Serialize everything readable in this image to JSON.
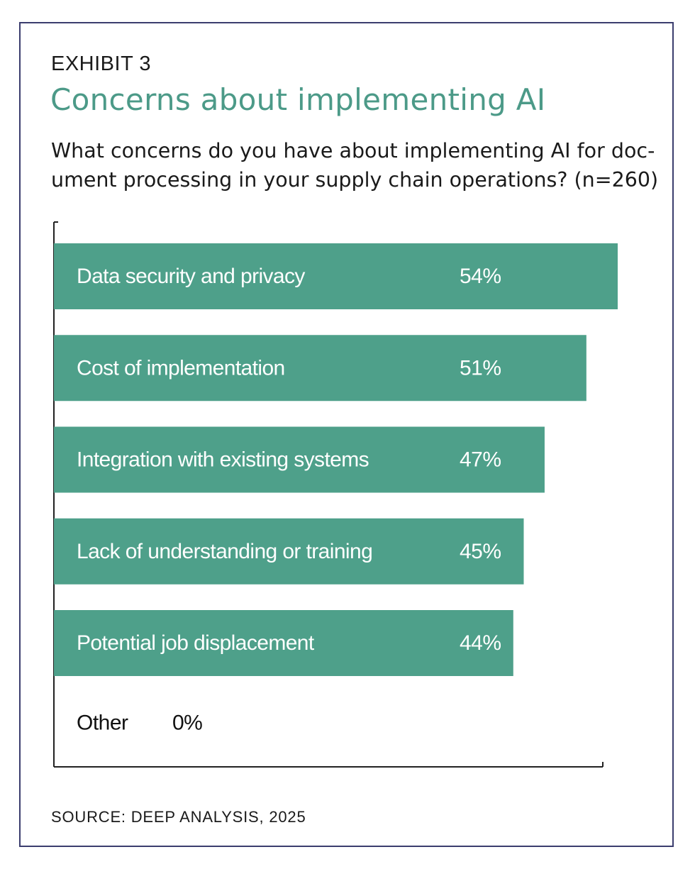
{
  "exhibit": "EXHIBIT 3",
  "title": "Concerns about implementing AI",
  "subtitle_lines": [
    "What concerns do you have about implementing AI for doc-",
    "ument processing in your supply chain operations? (n=260)"
  ],
  "source": "SOURCE: DEEP ANALYSIS, 2025",
  "colors": {
    "bar": "#4ea08a",
    "title": "#4c9a88",
    "frame": "#3b3d6e",
    "axis": "#222222"
  },
  "chart_data": {
    "type": "bar",
    "orientation": "horizontal",
    "categories": [
      "Data security and privacy",
      "Cost of implementation",
      "Integration with existing systems",
      "Lack of understanding or training",
      "Potential job displacement",
      "Other"
    ],
    "values": [
      54,
      51,
      47,
      45,
      44,
      0
    ],
    "value_labels": [
      "54%",
      "51%",
      "47%",
      "45%",
      "44%",
      "0%"
    ],
    "xlim": [
      0,
      54
    ],
    "grid": false,
    "legend": "none"
  }
}
